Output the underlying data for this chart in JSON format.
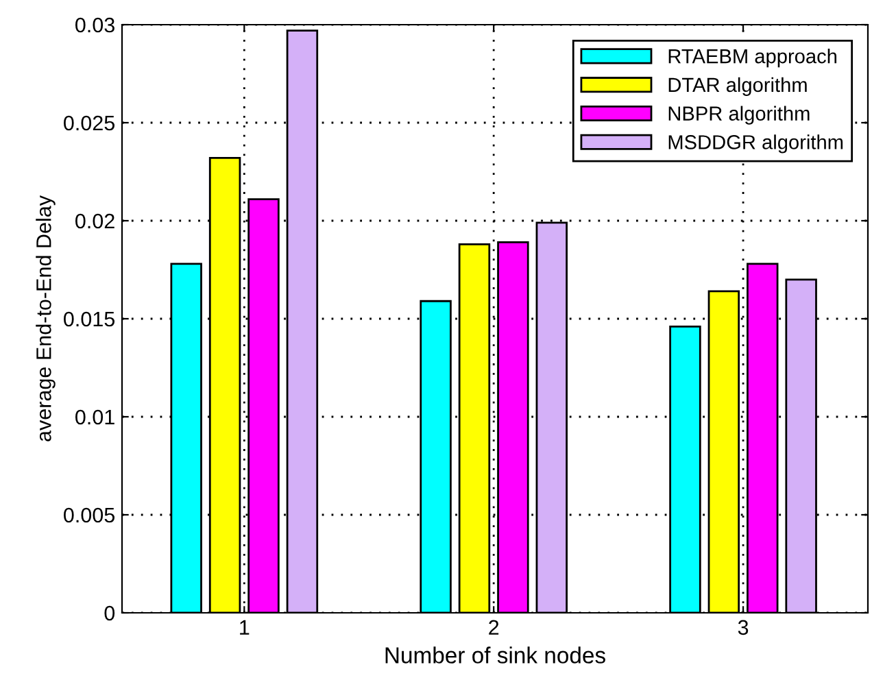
{
  "chart_data": {
    "type": "bar",
    "xlabel": "Number of sink nodes",
    "ylabel": "average End-to-End Delay",
    "categories": [
      "1",
      "2",
      "3"
    ],
    "series": [
      {
        "name": "RTAEBM approach",
        "color": "#00ffff",
        "values": [
          0.0178,
          0.0159,
          0.0146
        ]
      },
      {
        "name": "DTAR algorithm",
        "color": "#ffff00",
        "values": [
          0.0232,
          0.0188,
          0.0164
        ]
      },
      {
        "name": "NBPR algorithm",
        "color": "#ff00ff",
        "values": [
          0.0211,
          0.0189,
          0.0178
        ]
      },
      {
        "name": "MSDDGR algorithm",
        "color": "#d4b0f8",
        "values": [
          0.0297,
          0.0199,
          0.017
        ]
      }
    ],
    "ylim": [
      0,
      0.03
    ],
    "yticks": [
      0,
      0.005,
      0.01,
      0.015,
      0.02,
      0.025,
      0.03
    ],
    "grid": true,
    "legend": "top right"
  }
}
